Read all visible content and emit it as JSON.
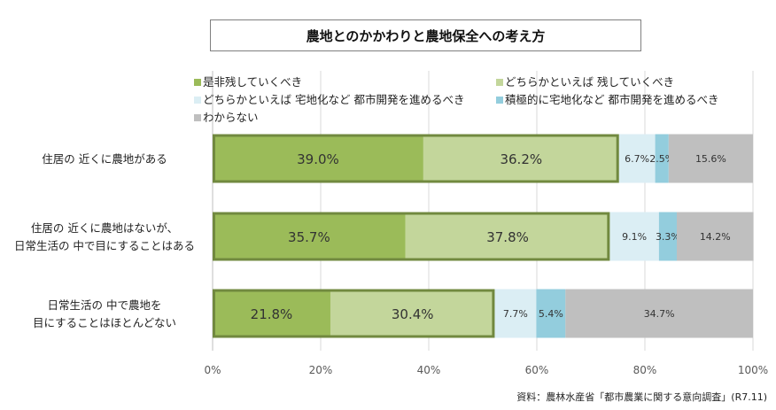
{
  "chart_data": {
    "type": "bar",
    "orientation": "horizontal",
    "stacked": true,
    "title": "農地とのかかわりと農地保全への考え方",
    "categories": [
      [
        "住居の 近くに農地がある"
      ],
      [
        "住居の 近くに農地はないが、",
        "日常生活の 中で目にすることはある"
      ],
      [
        "日常生活の 中で農地を",
        "目にすることはほとんどない"
      ]
    ],
    "series": [
      {
        "name": "是非残していくべき",
        "color": "#9bbb59",
        "values": [
          39.0,
          35.7,
          21.8
        ]
      },
      {
        "name": "どちらかといえば 残していくべき",
        "color": "#c3d69b",
        "values": [
          36.2,
          37.8,
          30.4
        ]
      },
      {
        "name": "どちらかといえば 宅地化など 都市開発を進めるべき",
        "color": "#dbeef4",
        "values": [
          6.7,
          9.1,
          7.7
        ]
      },
      {
        "name": "積極的に宅地化など 都市開発を進めるべき",
        "color": "#93cddd",
        "values": [
          2.5,
          3.3,
          5.4
        ]
      },
      {
        "name": "わからない",
        "color": "#bfbfbf",
        "values": [
          15.6,
          14.2,
          34.7
        ]
      }
    ],
    "data_labels": [
      [
        "39.0%",
        "36.2%",
        "6.7%",
        "2.5%",
        "15.6%"
      ],
      [
        "35.7%",
        "37.8%",
        "9.1%",
        "3.3%",
        "14.2%"
      ],
      [
        "21.8%",
        "30.4%",
        "7.7%",
        "5.4%",
        "34.7%"
      ]
    ],
    "highlight_outline_color": "#71893f",
    "xlim": [
      0,
      100
    ],
    "xticks": [
      "0%",
      "20%",
      "40%",
      "60%",
      "80%",
      "100%"
    ],
    "grid": true,
    "legend_position": "top",
    "source": "資料：農林水産省「都市農業に関する意向調査」(R7.11)"
  }
}
